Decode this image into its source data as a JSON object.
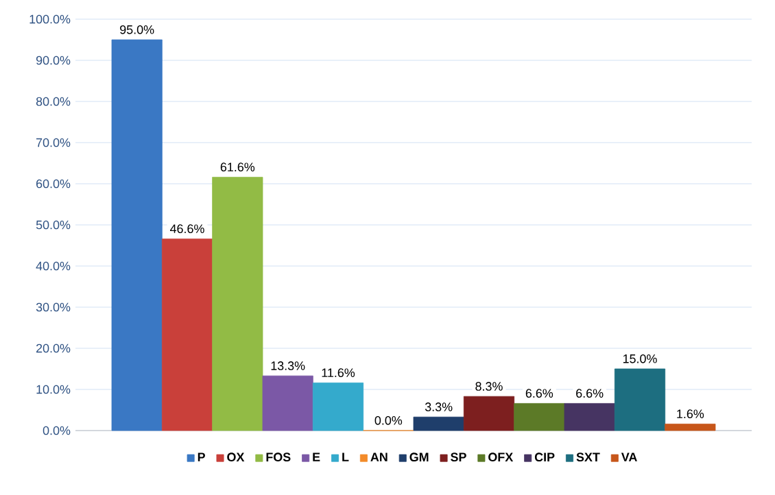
{
  "chart_data": {
    "type": "bar",
    "categories": [
      null
    ],
    "series": [
      {
        "name": "P",
        "color": "#3a78c4",
        "values": [
          95.0
        ],
        "value_labels": [
          "95.0%"
        ]
      },
      {
        "name": "OX",
        "color": "#c9403a",
        "values": [
          46.6
        ],
        "value_labels": [
          "46.6%"
        ]
      },
      {
        "name": "FOS",
        "color": "#92bb45",
        "values": [
          61.6
        ],
        "value_labels": [
          "61.6%"
        ]
      },
      {
        "name": "E",
        "color": "#7b58a6",
        "values": [
          13.3
        ],
        "value_labels": [
          "13.3%"
        ]
      },
      {
        "name": "L",
        "color": "#34aacc",
        "values": [
          11.6
        ],
        "value_labels": [
          "11.6%"
        ]
      },
      {
        "name": "AN",
        "color": "#f38b2a",
        "values": [
          0.0
        ],
        "value_labels": [
          "0.0%"
        ]
      },
      {
        "name": "GM",
        "color": "#1f3e6b",
        "values": [
          3.3
        ],
        "value_labels": [
          "3.3%"
        ]
      },
      {
        "name": "SP",
        "color": "#7d1f1f",
        "values": [
          8.3
        ],
        "value_labels": [
          "8.3%"
        ]
      },
      {
        "name": "OFX",
        "color": "#5c7a27",
        "values": [
          6.6
        ],
        "value_labels": [
          "6.6%"
        ]
      },
      {
        "name": "CIP",
        "color": "#463462",
        "values": [
          6.6
        ],
        "value_labels": [
          "6.6%"
        ]
      },
      {
        "name": "SXT",
        "color": "#1d6e80",
        "values": [
          15.0
        ],
        "value_labels": [
          "15.0%"
        ]
      },
      {
        "name": "VA",
        "color": "#c7561a",
        "values": [
          1.6
        ],
        "value_labels": [
          "1.6%"
        ]
      }
    ],
    "ylim": [
      0,
      100
    ],
    "yticks": [
      {
        "value": 0,
        "label": "0.0%"
      },
      {
        "value": 10,
        "label": "10.0%"
      },
      {
        "value": 20,
        "label": "20.0%"
      },
      {
        "value": 30,
        "label": "30.0%"
      },
      {
        "value": 40,
        "label": "40.0%"
      },
      {
        "value": 50,
        "label": "50.0%"
      },
      {
        "value": 60,
        "label": "60.0%"
      },
      {
        "value": 70,
        "label": "70.0%"
      },
      {
        "value": 80,
        "label": "80.0%"
      },
      {
        "value": 90,
        "label": "90.0%"
      },
      {
        "value": 100,
        "label": "100.0%"
      }
    ],
    "grid": "y",
    "legend": "bottom"
  }
}
